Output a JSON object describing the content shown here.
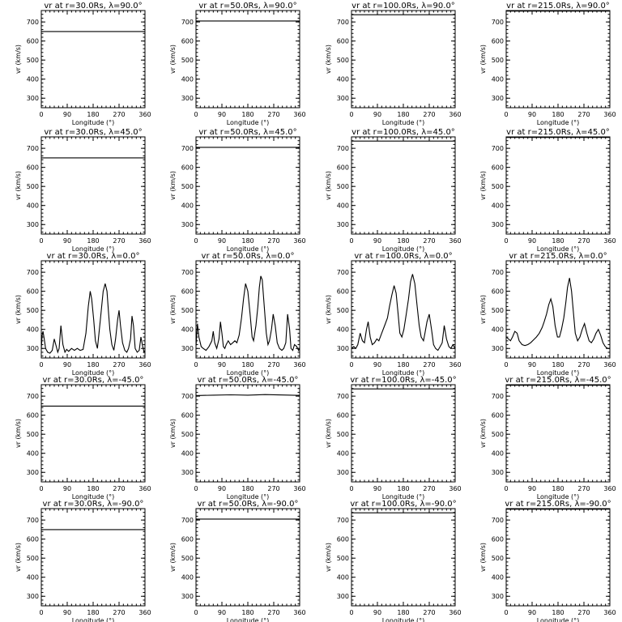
{
  "figure": {
    "xlabel": "Longitude (°)",
    "ylabel": "v_r (km/s)"
  },
  "chart_data": [
    {
      "type": "line",
      "title": "vr at r=30.0Rs, λ=90.0°",
      "xlabel": "Longitude (°)",
      "ylabel": "vr (km/s)",
      "xlim": [
        0,
        360
      ],
      "ylim": [
        250,
        760
      ],
      "xticks": [
        0,
        90,
        180,
        270,
        360
      ],
      "yticks": [
        300,
        400,
        500,
        600,
        700
      ],
      "series": [
        {
          "x": [
            0,
            360
          ],
          "y": [
            650,
            650
          ]
        }
      ]
    },
    {
      "type": "line",
      "title": "vr at r=50.0Rs, λ=90.0°",
      "xlabel": "Longitude (°)",
      "ylabel": "vr (km/s)",
      "xlim": [
        0,
        360
      ],
      "ylim": [
        250,
        760
      ],
      "xticks": [
        0,
        90,
        180,
        270,
        360
      ],
      "yticks": [
        300,
        400,
        500,
        600,
        700
      ],
      "series": [
        {
          "x": [
            0,
            360
          ],
          "y": [
            705,
            705
          ]
        }
      ]
    },
    {
      "type": "line",
      "title": "vr at r=100.0Rs, λ=90.0°",
      "xlabel": "Longitude (°)",
      "ylabel": "vr (km/s)",
      "xlim": [
        0,
        360
      ],
      "ylim": [
        250,
        760
      ],
      "xticks": [
        0,
        90,
        180,
        270,
        360
      ],
      "yticks": [
        300,
        400,
        500,
        600,
        700
      ],
      "series": [
        {
          "x": [
            0,
            360
          ],
          "y": [
            738,
            738
          ]
        }
      ]
    },
    {
      "type": "line",
      "title": "vr at r=215.0Rs, λ=90.0°",
      "xlabel": "Longitude (°)",
      "ylabel": "vr (km/s)",
      "xlim": [
        0,
        360
      ],
      "ylim": [
        250,
        760
      ],
      "xticks": [
        0,
        90,
        180,
        270,
        360
      ],
      "yticks": [
        300,
        400,
        500,
        600,
        700
      ],
      "series": [
        {
          "x": [
            0,
            360
          ],
          "y": [
            757,
            757
          ]
        }
      ]
    },
    {
      "type": "line",
      "title": "vr at r=30.0Rs, λ=45.0°",
      "xlabel": "Longitude (°)",
      "ylabel": "vr (km/s)",
      "xlim": [
        0,
        360
      ],
      "ylim": [
        250,
        760
      ],
      "xticks": [
        0,
        90,
        180,
        270,
        360
      ],
      "yticks": [
        300,
        400,
        500,
        600,
        700
      ],
      "series": [
        {
          "x": [
            0,
            360
          ],
          "y": [
            650,
            650
          ]
        }
      ]
    },
    {
      "type": "line",
      "title": "vr at r=50.0Rs, λ=45.0°",
      "xlabel": "Longitude (°)",
      "ylabel": "vr (km/s)",
      "xlim": [
        0,
        360
      ],
      "ylim": [
        250,
        760
      ],
      "xticks": [
        0,
        90,
        180,
        270,
        360
      ],
      "yticks": [
        300,
        400,
        500,
        600,
        700
      ],
      "series": [
        {
          "x": [
            0,
            360
          ],
          "y": [
            705,
            705
          ]
        }
      ]
    },
    {
      "type": "line",
      "title": "vr at r=100.0Rs, λ=45.0°",
      "xlabel": "Longitude (°)",
      "ylabel": "vr (km/s)",
      "xlim": [
        0,
        360
      ],
      "ylim": [
        250,
        760
      ],
      "xticks": [
        0,
        90,
        180,
        270,
        360
      ],
      "yticks": [
        300,
        400,
        500,
        600,
        700
      ],
      "series": [
        {
          "x": [
            0,
            360
          ],
          "y": [
            738,
            738
          ]
        }
      ]
    },
    {
      "type": "line",
      "title": "vr at r=215.0Rs, λ=45.0°",
      "xlabel": "Longitude (°)",
      "ylabel": "vr (km/s)",
      "xlim": [
        0,
        360
      ],
      "ylim": [
        250,
        760
      ],
      "xticks": [
        0,
        90,
        180,
        270,
        360
      ],
      "yticks": [
        300,
        400,
        500,
        600,
        700
      ],
      "series": [
        {
          "x": [
            0,
            360
          ],
          "y": [
            757,
            757
          ]
        }
      ]
    },
    {
      "type": "line",
      "title": "vr at r=30.0Rs, λ=0.0°",
      "xlabel": "Longitude (°)",
      "ylabel": "vr (km/s)",
      "xlim": [
        0,
        360
      ],
      "ylim": [
        250,
        760
      ],
      "xticks": [
        0,
        90,
        180,
        270,
        360
      ],
      "yticks": [
        300,
        400,
        500,
        600,
        700
      ],
      "series": [
        {
          "x": [
            0,
            3,
            6,
            10,
            15,
            22,
            30,
            38,
            45,
            52,
            57,
            62,
            68,
            75,
            82,
            88,
            95,
            105,
            115,
            125,
            135,
            145,
            155,
            163,
            170,
            175,
            182,
            188,
            195,
            205,
            215,
            222,
            228,
            233,
            238,
            245,
            252,
            258,
            265,
            270,
            275,
            282,
            290,
            297,
            303,
            310,
            315,
            320,
            326,
            333,
            340,
            346,
            352,
            357,
            360
          ],
          "y": [
            300,
            370,
            390,
            350,
            300,
            280,
            275,
            290,
            350,
            310,
            280,
            300,
            420,
            320,
            280,
            295,
            285,
            300,
            290,
            300,
            290,
            295,
            380,
            520,
            600,
            560,
            450,
            340,
            300,
            450,
            600,
            640,
            600,
            500,
            400,
            320,
            290,
            350,
            450,
            500,
            420,
            330,
            290,
            280,
            300,
            350,
            470,
            420,
            300,
            280,
            290,
            360,
            310,
            280,
            290
          ]
        }
      ]
    },
    {
      "type": "line",
      "title": "vr at r=50.0Rs, λ=0.0°",
      "xlabel": "Longitude (°)",
      "ylabel": "vr (km/s)",
      "xlim": [
        0,
        360
      ],
      "ylim": [
        250,
        760
      ],
      "xticks": [
        0,
        90,
        180,
        270,
        360
      ],
      "yticks": [
        300,
        400,
        500,
        600,
        700
      ],
      "series": [
        {
          "x": [
            0,
            5,
            10,
            18,
            25,
            35,
            45,
            55,
            60,
            65,
            72,
            80,
            85,
            90,
            95,
            100,
            105,
            112,
            120,
            128,
            135,
            142,
            150,
            158,
            165,
            172,
            180,
            188,
            195,
            200,
            208,
            215,
            220,
            225,
            230,
            237,
            244,
            250,
            255,
            262,
            268,
            275,
            282,
            290,
            298,
            305,
            312,
            318,
            325,
            330,
            336,
            342,
            350,
            356,
            360
          ],
          "y": [
            310,
            430,
            360,
            310,
            300,
            290,
            310,
            340,
            390,
            330,
            300,
            350,
            440,
            380,
            310,
            300,
            320,
            340,
            320,
            330,
            340,
            330,
            370,
            460,
            560,
            640,
            600,
            480,
            360,
            340,
            420,
            520,
            620,
            680,
            660,
            520,
            380,
            320,
            340,
            400,
            480,
            420,
            330,
            300,
            290,
            300,
            330,
            480,
            400,
            300,
            290,
            320,
            310,
            290,
            300
          ]
        }
      ]
    },
    {
      "type": "line",
      "title": "vr at r=100.0Rs, λ=0.0°",
      "xlabel": "Longitude (°)",
      "ylabel": "vr (km/s)",
      "xlim": [
        0,
        360
      ],
      "ylim": [
        250,
        760
      ],
      "xticks": [
        0,
        90,
        180,
        270,
        360
      ],
      "yticks": [
        300,
        400,
        500,
        600,
        700
      ],
      "series": [
        {
          "x": [
            0,
            8,
            15,
            22,
            30,
            38,
            45,
            52,
            58,
            65,
            72,
            80,
            88,
            95,
            105,
            115,
            125,
            132,
            140,
            148,
            155,
            162,
            168,
            175,
            182,
            190,
            198,
            205,
            212,
            220,
            228,
            235,
            242,
            250,
            255,
            262,
            270,
            278,
            285,
            292,
            300,
            308,
            315,
            322,
            330,
            338,
            345,
            352,
            356,
            360
          ],
          "y": [
            300,
            310,
            300,
            320,
            380,
            340,
            330,
            400,
            440,
            360,
            320,
            330,
            350,
            340,
            380,
            420,
            460,
            520,
            580,
            630,
            590,
            480,
            380,
            360,
            400,
            480,
            560,
            650,
            690,
            640,
            520,
            420,
            360,
            340,
            380,
            440,
            480,
            400,
            320,
            300,
            290,
            310,
            330,
            420,
            350,
            310,
            300,
            320,
            310,
            300
          ]
        }
      ]
    },
    {
      "type": "line",
      "title": "vr at r=215.0Rs, λ=0.0°",
      "xlabel": "Longitude (°)",
      "ylabel": "vr (km/s)",
      "xlim": [
        0,
        360
      ],
      "ylim": [
        250,
        760
      ],
      "xticks": [
        0,
        90,
        180,
        270,
        360
      ],
      "yticks": [
        300,
        400,
        500,
        600,
        700
      ],
      "series": [
        {
          "x": [
            0,
            8,
            15,
            22,
            30,
            38,
            45,
            55,
            65,
            75,
            85,
            95,
            105,
            115,
            125,
            132,
            140,
            148,
            155,
            162,
            170,
            178,
            185,
            192,
            200,
            207,
            213,
            220,
            227,
            234,
            240,
            248,
            256,
            264,
            272,
            280,
            288,
            296,
            304,
            312,
            320,
            328,
            336,
            344,
            352,
            360
          ],
          "y": [
            360,
            350,
            340,
            360,
            390,
            380,
            340,
            320,
            315,
            320,
            330,
            345,
            360,
            380,
            410,
            440,
            480,
            530,
            560,
            520,
            420,
            360,
            360,
            400,
            460,
            540,
            620,
            670,
            600,
            480,
            380,
            340,
            360,
            400,
            430,
            380,
            340,
            330,
            350,
            380,
            400,
            370,
            330,
            310,
            300,
            300
          ]
        }
      ]
    },
    {
      "type": "line",
      "title": "vr at r=30.0Rs, λ=-45.0°",
      "xlabel": "Longitude (°)",
      "ylabel": "vr (km/s)",
      "xlim": [
        0,
        360
      ],
      "ylim": [
        250,
        760
      ],
      "xticks": [
        0,
        90,
        180,
        270,
        360
      ],
      "yticks": [
        300,
        400,
        500,
        600,
        700
      ],
      "series": [
        {
          "x": [
            0,
            360
          ],
          "y": [
            648,
            648
          ]
        }
      ]
    },
    {
      "type": "line",
      "title": "vr at r=50.0Rs, λ=-45.0°",
      "xlabel": "Longitude (°)",
      "ylabel": "vr (km/s)",
      "xlim": [
        0,
        360
      ],
      "ylim": [
        250,
        760
      ],
      "xticks": [
        0,
        90,
        180,
        270,
        360
      ],
      "yticks": [
        300,
        400,
        500,
        600,
        700
      ],
      "series": [
        {
          "x": [
            0,
            60,
            120,
            180,
            240,
            300,
            360
          ],
          "y": [
            703,
            705,
            707,
            705,
            708,
            706,
            704
          ]
        }
      ]
    },
    {
      "type": "line",
      "title": "vr at r=100.0Rs, λ=-45.0°",
      "xlabel": "Longitude (°)",
      "ylabel": "vr (km/s)",
      "xlim": [
        0,
        360
      ],
      "ylim": [
        250,
        760
      ],
      "xticks": [
        0,
        90,
        180,
        270,
        360
      ],
      "yticks": [
        300,
        400,
        500,
        600,
        700
      ],
      "series": [
        {
          "x": [
            0,
            360
          ],
          "y": [
            738,
            738
          ]
        }
      ]
    },
    {
      "type": "line",
      "title": "vr at r=215.0Rs, λ=-45.0°",
      "xlabel": "Longitude (°)",
      "ylabel": "vr (km/s)",
      "xlim": [
        0,
        360
      ],
      "ylim": [
        250,
        760
      ],
      "xticks": [
        0,
        90,
        180,
        270,
        360
      ],
      "yticks": [
        300,
        400,
        500,
        600,
        700
      ],
      "series": [
        {
          "x": [
            0,
            360
          ],
          "y": [
            757,
            757
          ]
        }
      ]
    },
    {
      "type": "line",
      "title": "vr at r=30.0Rs, λ=-90.0°",
      "xlabel": "Longitude (°)",
      "ylabel": "vr (km/s)",
      "xlim": [
        0,
        360
      ],
      "ylim": [
        250,
        760
      ],
      "xticks": [
        0,
        90,
        180,
        270,
        360
      ],
      "yticks": [
        300,
        400,
        500,
        600,
        700
      ],
      "series": [
        {
          "x": [
            0,
            360
          ],
          "y": [
            650,
            650
          ]
        }
      ]
    },
    {
      "type": "line",
      "title": "vr at r=50.0Rs, λ=-90.0°",
      "xlabel": "Longitude (°)",
      "ylabel": "vr (km/s)",
      "xlim": [
        0,
        360
      ],
      "ylim": [
        250,
        760
      ],
      "xticks": [
        0,
        90,
        180,
        270,
        360
      ],
      "yticks": [
        300,
        400,
        500,
        600,
        700
      ],
      "series": [
        {
          "x": [
            0,
            360
          ],
          "y": [
            705,
            705
          ]
        }
      ]
    },
    {
      "type": "line",
      "title": "vr at r=100.0Rs, λ=-90.0°",
      "xlabel": "Longitude (°)",
      "ylabel": "vr (km/s)",
      "xlim": [
        0,
        360
      ],
      "ylim": [
        250,
        760
      ],
      "xticks": [
        0,
        90,
        180,
        270,
        360
      ],
      "yticks": [
        300,
        400,
        500,
        600,
        700
      ],
      "series": [
        {
          "x": [
            0,
            360
          ],
          "y": [
            738,
            738
          ]
        }
      ]
    },
    {
      "type": "line",
      "title": "vr at r=215.0Rs, λ=-90.0°",
      "xlabel": "Longitude (°)",
      "ylabel": "vr (km/s)",
      "xlim": [
        0,
        360
      ],
      "ylim": [
        250,
        760
      ],
      "xticks": [
        0,
        90,
        180,
        270,
        360
      ],
      "yticks": [
        300,
        400,
        500,
        600,
        700
      ],
      "series": [
        {
          "x": [
            0,
            360
          ],
          "y": [
            757,
            757
          ]
        }
      ]
    }
  ]
}
